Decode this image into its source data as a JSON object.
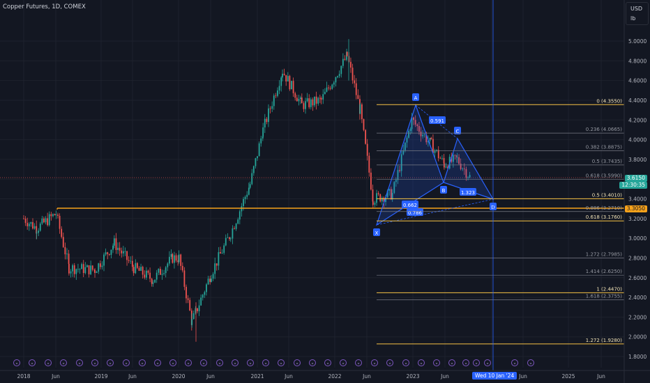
{
  "header": {
    "symbol_title": "Copper Futures, 1D, COMEX",
    "currency": "USD",
    "unit": "lb"
  },
  "colors": {
    "background": "#131722",
    "grid": "#1e222d",
    "up_candle": "#26a69a",
    "down_candle": "#ef5350",
    "fib_line": "#787b86",
    "fib_gold": "#f7c344",
    "pattern_fill": "rgba(41,98,255,0.18)",
    "pattern_stroke": "#2962ff",
    "orange_level": "#f7a21b",
    "crosshair": "#2962ff"
  },
  "price_axis": {
    "labels": [
      "5.0000",
      "4.8000",
      "4.6000",
      "4.4000",
      "4.2000",
      "4.0000",
      "3.8000",
      "3.6000",
      "3.4000",
      "3.2000",
      "3.0000",
      "2.8000",
      "2.6000",
      "2.4000",
      "2.2000",
      "2.0000",
      "1.8000"
    ]
  },
  "price_tags": {
    "last_price": "3.6150",
    "countdown": "12:30:35",
    "orange_level": "3.3050"
  },
  "time_axis": {
    "labels": [
      "2018",
      "Jun",
      "2019",
      "Jun",
      "2020",
      "Jun",
      "2021",
      "Jun",
      "2022",
      "Jun",
      "2023",
      "Jun",
      "2024",
      "Jun",
      "2025",
      "Jun"
    ],
    "cursor_date": "Wed 10 Jan '24"
  },
  "pattern": {
    "point_labels": [
      "X",
      "A",
      "B",
      "C",
      "D"
    ],
    "ratio_labels": [
      "0.591",
      "1.323",
      "0.662",
      "0.786"
    ]
  },
  "fib_levels": [
    {
      "label": "0 (4.3550)",
      "price": 4.355,
      "gold": true
    },
    {
      "label": "0.236 (4.0665)",
      "price": 4.0665,
      "gold": false
    },
    {
      "label": "0.382 (3.8875)",
      "price": 3.8875,
      "gold": false
    },
    {
      "label": "0.5 (3.7435)",
      "price": 3.7435,
      "gold": false
    },
    {
      "label": "0.618 (3.5990)",
      "price": 3.599,
      "gold": false
    },
    {
      "label": "0.5 (3.4010)",
      "price": 3.401,
      "gold": true
    },
    {
      "label": "0.886 (3.2710)",
      "price": 3.271,
      "gold": false
    },
    {
      "label": "0.618 (3.1760)",
      "price": 3.176,
      "gold": true
    },
    {
      "label": "1.272 (2.7985)",
      "price": 2.7985,
      "gold": false
    },
    {
      "label": "1.414 (2.6250)",
      "price": 2.625,
      "gold": false
    },
    {
      "label": "1 (2.4470)",
      "price": 2.447,
      "gold": true
    },
    {
      "label": "1.618 (2.3755)",
      "price": 2.3755,
      "gold": false
    },
    {
      "label": "1.272 (1.9280)",
      "price": 1.928,
      "gold": true
    }
  ],
  "chart_data": {
    "type": "candlestick",
    "x_labels": [
      "2018",
      "Jun",
      "2019",
      "Jun",
      "2020",
      "Jun",
      "2021",
      "Jun",
      "2022",
      "Jun",
      "2023",
      "Jun",
      "2024",
      "Jun",
      "2025",
      "Jun"
    ],
    "y_range": [
      1.75,
      5.2
    ],
    "approx_monthly_close": [
      {
        "t": "2018-01",
        "v": 3.2
      },
      {
        "t": "2018-03",
        "v": 3.1
      },
      {
        "t": "2018-06",
        "v": 3.25
      },
      {
        "t": "2018-08",
        "v": 2.7
      },
      {
        "t": "2018-12",
        "v": 2.68
      },
      {
        "t": "2019-03",
        "v": 2.95
      },
      {
        "t": "2019-06",
        "v": 2.7
      },
      {
        "t": "2019-09",
        "v": 2.58
      },
      {
        "t": "2019-12",
        "v": 2.8
      },
      {
        "t": "2020-01",
        "v": 2.8
      },
      {
        "t": "2020-03",
        "v": 2.15
      },
      {
        "t": "2020-06",
        "v": 2.65
      },
      {
        "t": "2020-09",
        "v": 3.05
      },
      {
        "t": "2020-12",
        "v": 3.55
      },
      {
        "t": "2021-02",
        "v": 4.1
      },
      {
        "t": "2021-05",
        "v": 4.7
      },
      {
        "t": "2021-08",
        "v": 4.35
      },
      {
        "t": "2021-11",
        "v": 4.4
      },
      {
        "t": "2022-03",
        "v": 4.85
      },
      {
        "t": "2022-05",
        "v": 4.3
      },
      {
        "t": "2022-07",
        "v": 3.4
      },
      {
        "t": "2022-10",
        "v": 3.45
      },
      {
        "t": "2023-01",
        "v": 4.2
      },
      {
        "t": "2023-04",
        "v": 3.95
      },
      {
        "t": "2023-06",
        "v": 3.75
      },
      {
        "t": "2023-08",
        "v": 3.8
      },
      {
        "t": "2023-10",
        "v": 3.62
      }
    ]
  },
  "toolbar_markers": {
    "count": 34
  }
}
